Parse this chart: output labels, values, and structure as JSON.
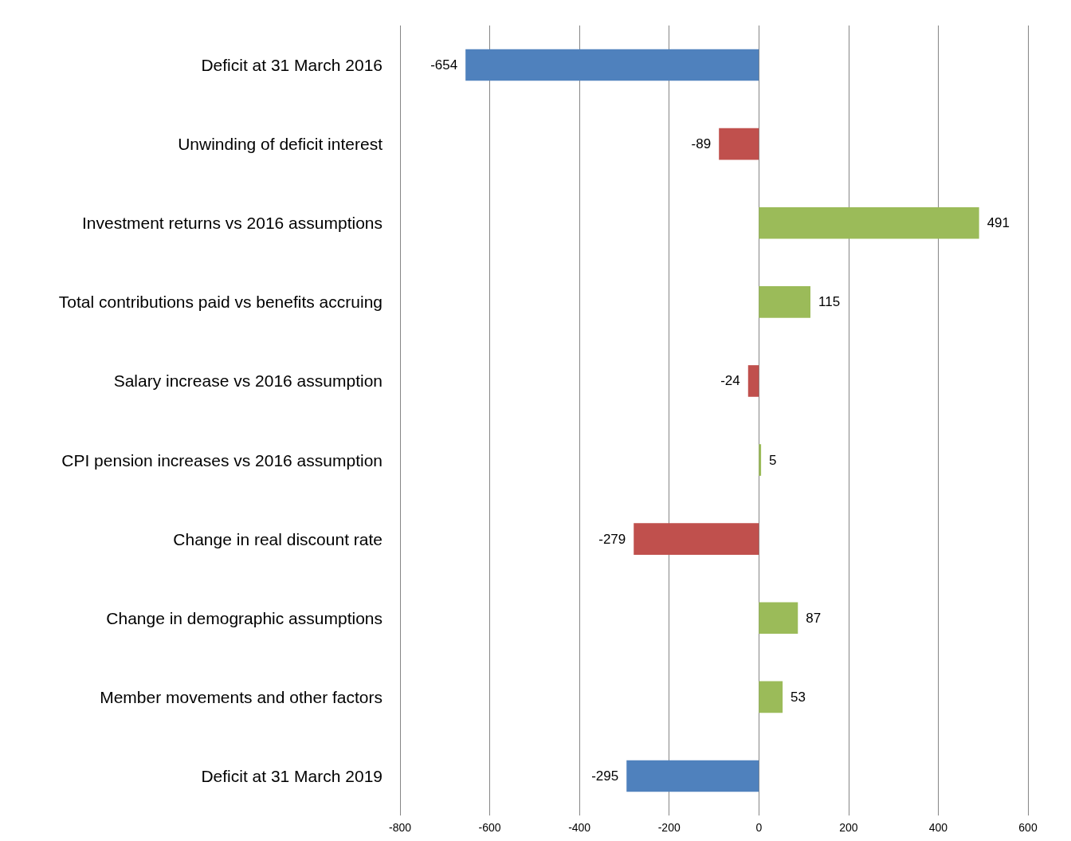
{
  "chart_data": {
    "type": "bar",
    "orientation": "horizontal",
    "categories": [
      "Deficit at 31 March 2016",
      "Unwinding of deficit interest",
      "Investment returns vs 2016 assumptions",
      "Total contributions paid vs benefits accruing",
      "Salary increase vs 2016 assumption",
      "CPI pension increases vs 2016 assumption",
      "Change in real discount rate",
      "Change in demographic assumptions",
      "Member movements and other factors",
      "Deficit at 31 March 2019"
    ],
    "values": [
      -654,
      -89,
      491,
      115,
      -24,
      5,
      -279,
      87,
      53,
      -295
    ],
    "colors": [
      "#4f81bd",
      "#c0504d",
      "#9bbb59",
      "#9bbb59",
      "#c0504d",
      "#9bbb59",
      "#c0504d",
      "#9bbb59",
      "#9bbb59",
      "#4f81bd"
    ],
    "xlim": [
      -800,
      600
    ],
    "xticks": [
      -800,
      -600,
      -400,
      -200,
      0,
      200,
      400,
      600
    ],
    "grid": "x",
    "data_labels": true
  }
}
